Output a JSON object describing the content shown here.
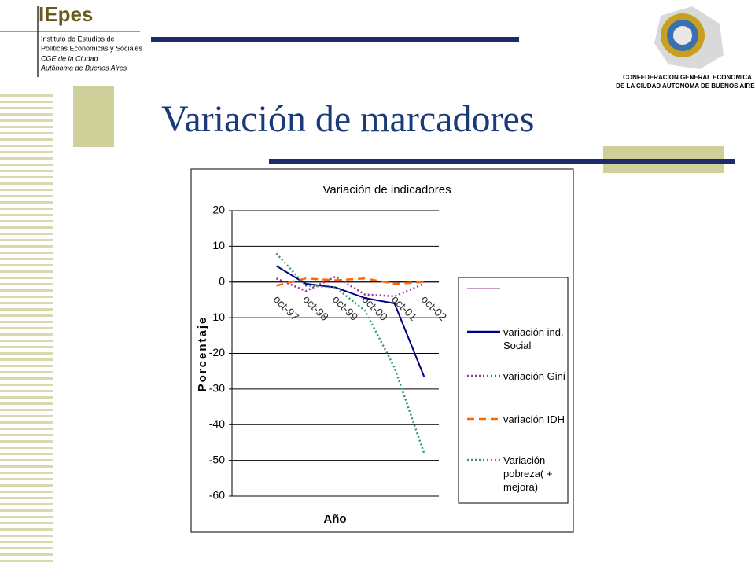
{
  "header": {
    "brand": "IEpes",
    "lines": [
      "Instituto de Estudios de",
      "Políticas Económicas y Sociales",
      "CGE de la Ciudad",
      "Autónoma de Buenos Aires"
    ],
    "org": [
      "CONFEDERACION GENERAL ECONOMICA",
      "DE LA CIUDAD AUTONOMA DE BUENOS AIRES"
    ],
    "title": "Variación de marcadores"
  },
  "chart_data": {
    "type": "line",
    "title": "Variación de indicadores",
    "x_label": "Año",
    "y_label": "Porcentaje",
    "categories": [
      null,
      "oct-97",
      "oct-98",
      "oct-99",
      "oct-00",
      "oct-01",
      "oct-02"
    ],
    "series": [
      {
        "name": "variación ind. Social",
        "color": "#000080",
        "style": "solid",
        "values": [
          null,
          4.5,
          -0.5,
          -1.5,
          -4.5,
          -6,
          -26.5
        ]
      },
      {
        "name": "variación Gini",
        "color": "#993399",
        "style": "dotted",
        "values": [
          null,
          1,
          -2.5,
          1.5,
          -3.5,
          -4,
          -0.5
        ]
      },
      {
        "name": "variación IDH",
        "color": "#ff6600",
        "style": "dashed",
        "values": [
          null,
          -1,
          1,
          0.5,
          1,
          -0.5,
          0
        ]
      },
      {
        "name": "Variación pobreza( + mejora)",
        "color": "#339966",
        "style": "dotted",
        "values": [
          null,
          8,
          -1,
          -1.5,
          -8,
          -24,
          -48
        ]
      }
    ],
    "ylim": [
      -60,
      20
    ],
    "yticks": [
      20,
      10,
      0,
      -10,
      -20,
      -30,
      -40,
      -50,
      -60
    ],
    "grid": true
  }
}
